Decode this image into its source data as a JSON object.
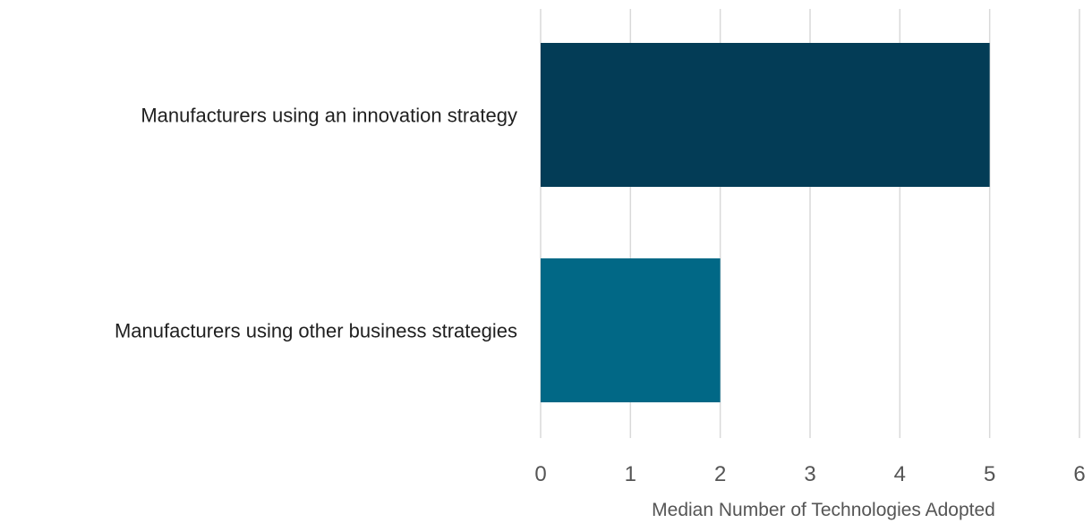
{
  "chart_data": {
    "type": "bar",
    "orientation": "horizontal",
    "categories": [
      "Manufacturers using an innovation strategy",
      "Manufacturers using other business strategies"
    ],
    "values": [
      5,
      2
    ],
    "colors": [
      "#033c56",
      "#016886"
    ],
    "xlabel": "Median Number of Technologies Adopted",
    "xlim": [
      0,
      6
    ],
    "xticks": [
      "0",
      "1",
      "2",
      "3",
      "4",
      "5",
      "6"
    ],
    "grid": true,
    "legend": "none"
  }
}
